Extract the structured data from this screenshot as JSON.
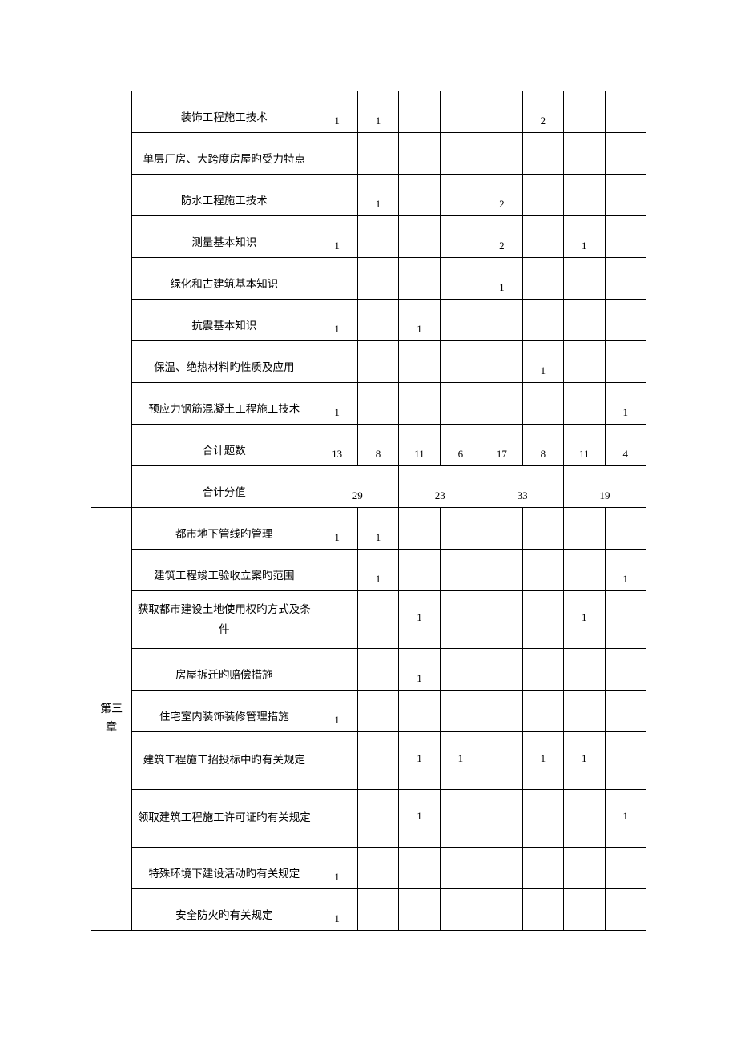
{
  "table": {
    "chapter_label": "第三\n章",
    "section1_rows": [
      {
        "desc": "装饰工程施工技术",
        "cells": [
          "1",
          "1",
          "",
          "",
          "",
          "2",
          "",
          ""
        ]
      },
      {
        "desc": "单层厂房、大跨度房屋旳受力特点",
        "cells": [
          "",
          "",
          "",
          "",
          "",
          "",
          "",
          ""
        ]
      },
      {
        "desc": "防水工程施工技术",
        "cells": [
          "",
          "1",
          "",
          "",
          "2",
          "",
          "",
          ""
        ]
      },
      {
        "desc": "测量基本知识",
        "cells": [
          "1",
          "",
          "",
          "",
          "2",
          "",
          "1",
          ""
        ]
      },
      {
        "desc": "绿化和古建筑基本知识",
        "cells": [
          "",
          "",
          "",
          "",
          "1",
          "",
          "",
          ""
        ]
      },
      {
        "desc": "抗震基本知识",
        "cells": [
          "1",
          "",
          "1",
          "",
          "",
          "",
          "",
          ""
        ]
      },
      {
        "desc": "保温、绝热材料旳性质及应用",
        "cells": [
          "",
          "",
          "",
          "",
          "",
          "1",
          "",
          ""
        ]
      },
      {
        "desc": "预应力钢筋混凝土工程施工技术",
        "cells": [
          "1",
          "",
          "",
          "",
          "",
          "",
          "",
          "1"
        ]
      },
      {
        "desc": "合计题数",
        "cells": [
          "13",
          "8",
          "11",
          "6",
          "17",
          "8",
          "11",
          "4"
        ]
      }
    ],
    "score_row": {
      "desc": "合计分值",
      "merged": [
        "29",
        "23",
        "33",
        "19"
      ]
    },
    "section2_rows": [
      {
        "desc": "都市地下管线旳管理",
        "cells": [
          "1",
          "1",
          "",
          "",
          "",
          "",
          "",
          ""
        ]
      },
      {
        "desc": "建筑工程竣工验收立案旳范围",
        "cells": [
          "",
          "1",
          "",
          "",
          "",
          "",
          "",
          "1"
        ]
      },
      {
        "desc": "获取都市建设土地使用权旳方式及条件",
        "twoline": true,
        "cells": [
          "",
          "",
          "1",
          "",
          "",
          "",
          "1",
          ""
        ]
      },
      {
        "desc": "房屋拆迁旳赔偿措施",
        "cells": [
          "",
          "",
          "1",
          "",
          "",
          "",
          "",
          ""
        ]
      },
      {
        "desc": "住宅室内装饰装修管理措施",
        "cells": [
          "1",
          "",
          "",
          "",
          "",
          "",
          "",
          ""
        ]
      },
      {
        "desc": "建筑工程施工招投标中旳有关规定",
        "twoline": true,
        "cells": [
          "",
          "",
          "1",
          "1",
          "",
          "1",
          "1",
          ""
        ]
      },
      {
        "desc": "领取建筑工程施工许可证旳有关规定",
        "twoline": true,
        "cells": [
          "",
          "",
          "1",
          "",
          "",
          "",
          "",
          "1"
        ]
      },
      {
        "desc": "特殊环境下建设活动旳有关规定",
        "cells": [
          "1",
          "",
          "",
          "",
          "",
          "",
          "",
          ""
        ]
      },
      {
        "desc": "安全防火旳有关规定",
        "cells": [
          "1",
          "",
          "",
          "",
          "",
          "",
          "",
          ""
        ]
      }
    ]
  }
}
